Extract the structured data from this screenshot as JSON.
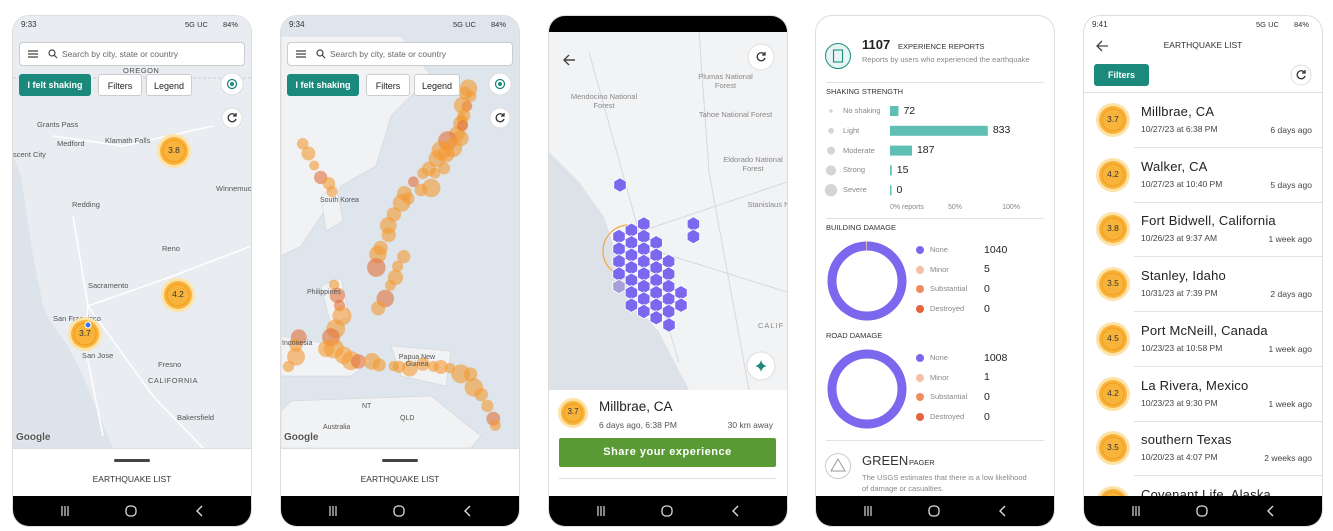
{
  "screens": [
    {
      "status": {
        "time": "9:33",
        "network": "5G UC",
        "battery": "84%"
      },
      "search_placeholder": "Search by city, state or country",
      "buttons": [
        "I felt shaking",
        "Filters",
        "Legend"
      ],
      "map_labels": [
        "OREGON",
        "Grants Pass",
        "Medford",
        "Klamath Falls",
        "scent City",
        "Redding",
        "Winnemucc",
        "Reno",
        "Sacramento",
        "San Francisco",
        "San Jose",
        "Fresno",
        "CALIFORNIA",
        "Bakersfield"
      ],
      "markers": [
        "3.8",
        "4.2",
        "3.7"
      ],
      "attribution": "Google",
      "sheet_title": "EARTHQUAKE LIST"
    },
    {
      "status": {
        "time": "9:34",
        "network": "5G UC",
        "battery": "84%"
      },
      "search_placeholder": "Search by city, state or country",
      "buttons": [
        "I felt shaking",
        "Filters",
        "Legend"
      ],
      "map_labels": [
        "South Korea",
        "Philippines",
        "Indonesia",
        "Papua New Guinea",
        "NT",
        "QLD",
        "Australia"
      ],
      "attribution": "Google",
      "sheet_title": "EARTHQUAKE LIST"
    },
    {
      "map_labels": [
        "Plumas National Forest",
        "Mendocino National Forest",
        "Tahoe National Forest",
        "Eldorado National Forest",
        "Stanislaus National Fo",
        "CALIF"
      ],
      "card": {
        "magnitude": "3.7",
        "place": "Millbrae, CA",
        "time": "6 days ago, 6:38 PM",
        "distance": "30 km away",
        "button": "Share your experience"
      }
    },
    {
      "reports": {
        "count": 1107,
        "title": "EXPERIENCE REPORTS",
        "description": "Reports by users who experienced the earthquake"
      },
      "shaking": {
        "title": "SHAKING STRENGTH",
        "rows": [
          {
            "label": "No shaking",
            "value": 72
          },
          {
            "label": "Light",
            "value": 833
          },
          {
            "label": "Moderate",
            "value": 187
          },
          {
            "label": "Strong",
            "value": 15
          },
          {
            "label": "Severe",
            "value": 0
          }
        ],
        "axis": [
          "0% reports",
          "50%",
          "100%"
        ]
      },
      "building": {
        "title": "BUILDING DAMAGE",
        "rows": [
          {
            "label": "None",
            "value": 1040
          },
          {
            "label": "Minor",
            "value": 5
          },
          {
            "label": "Substantial",
            "value": 0
          },
          {
            "label": "Destroyed",
            "value": 0
          }
        ]
      },
      "road": {
        "title": "ROAD DAMAGE",
        "rows": [
          {
            "label": "None",
            "value": 1008
          },
          {
            "label": "Minor",
            "value": 1
          },
          {
            "label": "Substantial",
            "value": 0
          },
          {
            "label": "Destroyed",
            "value": 0
          }
        ]
      },
      "pager": {
        "level": "GREEN",
        "title": "PAGER",
        "description": "The USGS estimates that there is a low likelihood of damage or casualties."
      }
    },
    {
      "status": {
        "time": "9:41",
        "network": "5G UC",
        "battery": "84%"
      },
      "title": "EARTHQUAKE LIST",
      "filters": "Filters",
      "items": [
        {
          "magnitude": "3.7",
          "place": "Millbrae, CA",
          "date": "10/27/23 at 6:38 PM",
          "ago": "6 days ago"
        },
        {
          "magnitude": "4.2",
          "place": "Walker, CA",
          "date": "10/27/23 at 10:40 PM",
          "ago": "5 days ago"
        },
        {
          "magnitude": "3.8",
          "place": "Fort Bidwell, California",
          "date": "10/26/23 at 9:37 AM",
          "ago": "1 week ago"
        },
        {
          "magnitude": "3.5",
          "place": "Stanley, Idaho",
          "date": "10/31/23 at 7:39 PM",
          "ago": "2 days ago"
        },
        {
          "magnitude": "4.5",
          "place": "Port McNeill, Canada",
          "date": "10/23/23 at 10:58 PM",
          "ago": "1 week ago"
        },
        {
          "magnitude": "4.2",
          "place": "La Rivera, Mexico",
          "date": "10/23/23 at 9:30 PM",
          "ago": "1 week ago"
        },
        {
          "magnitude": "3.5",
          "place": "southern Texas",
          "date": "10/20/23 at 4:07 PM",
          "ago": "2 weeks ago"
        },
        {
          "place": "Covenant Life, Alaska"
        }
      ]
    }
  ]
}
